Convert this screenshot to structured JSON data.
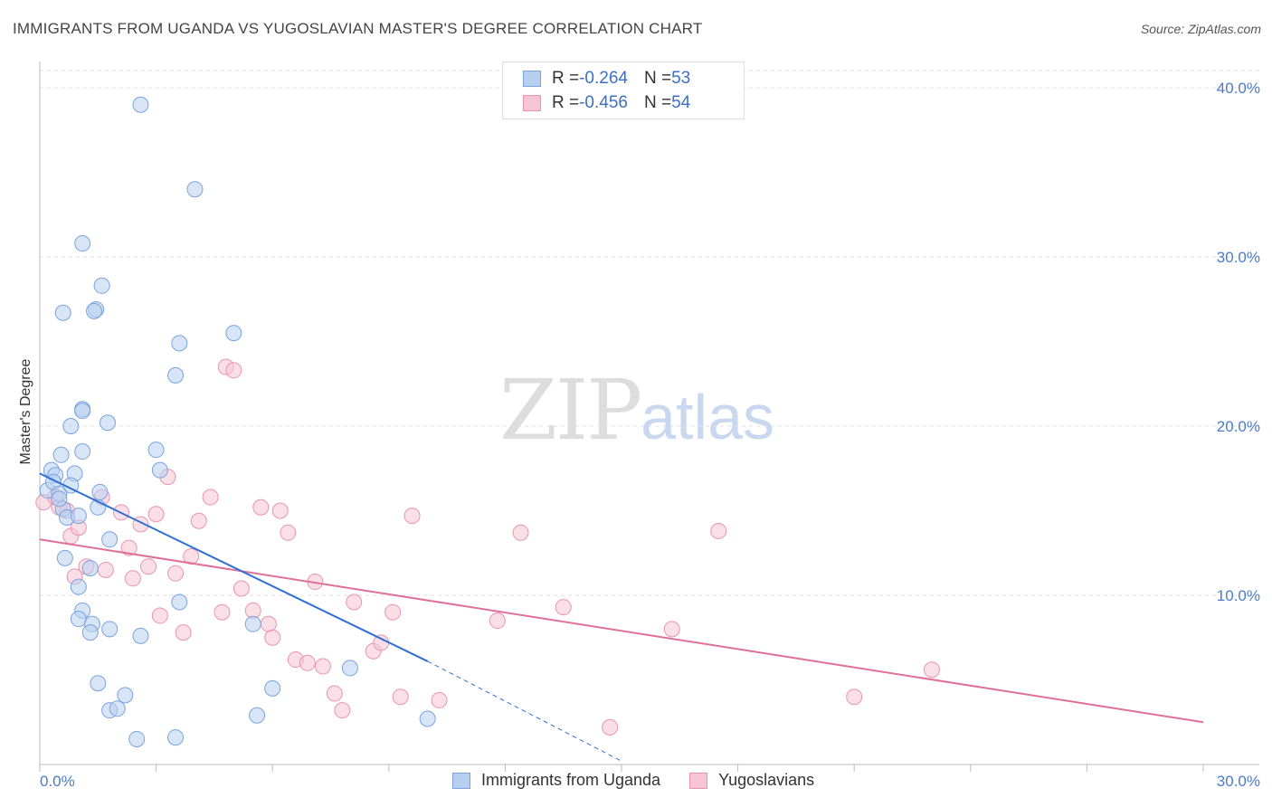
{
  "title": "IMMIGRANTS FROM UGANDA VS YUGOSLAVIAN MASTER'S DEGREE CORRELATION CHART",
  "source": "Source: ZipAtlas.com",
  "watermark": {
    "zip": "ZIP",
    "atlas": "atlas"
  },
  "legend": {
    "rows": [
      {
        "r_label": "R = ",
        "r_value": "-0.264",
        "n_label": "N = ",
        "n_value": "53"
      },
      {
        "r_label": "R = ",
        "r_value": "-0.456",
        "n_label": "N = ",
        "n_value": "54"
      }
    ]
  },
  "bottom_legend": {
    "series1": "Immigrants from Uganda",
    "series2": "Yugoslavians"
  },
  "colors": {
    "blue_fill": "#b8d0f0",
    "blue_stroke": "#7aa3dd",
    "blue_line": "#2f6fd6",
    "pink_fill": "#f7c4d4",
    "pink_stroke": "#e994b2",
    "pink_line": "#e0709a",
    "grid": "#e2e2e2",
    "tick_text": "#4a7cc9"
  },
  "chart_data": {
    "type": "scatter",
    "title": "IMMIGRANTS FROM UGANDA VS YUGOSLAVIAN MASTER'S DEGREE CORRELATION CHART",
    "xlabel": "",
    "ylabel": "Master's Degree",
    "xlim": [
      0,
      30
    ],
    "ylim": [
      0,
      40
    ],
    "x_tick_labels": [
      "0.0%",
      "30.0%"
    ],
    "y_ticks": [
      10,
      20,
      30,
      40
    ],
    "y_tick_labels": [
      "10.0%",
      "20.0%",
      "30.0%",
      "40.0%"
    ],
    "series": [
      {
        "name": "Immigrants from Uganda",
        "r": -0.264,
        "n": 53,
        "trend": {
          "x0": 0,
          "y0": 17.2,
          "x1": 10,
          "y1": 6.1,
          "dashed_to_x": 15,
          "dashed_to_y": 0.2
        },
        "points": [
          [
            0.2,
            16.2
          ],
          [
            0.3,
            17.4
          ],
          [
            0.4,
            17.1
          ],
          [
            0.35,
            16.7
          ],
          [
            0.5,
            16.0
          ],
          [
            0.6,
            15.1
          ],
          [
            0.7,
            14.6
          ],
          [
            0.55,
            18.3
          ],
          [
            0.9,
            17.2
          ],
          [
            0.8,
            16.5
          ],
          [
            0.8,
            20.0
          ],
          [
            1.0,
            14.7
          ],
          [
            1.1,
            18.5
          ],
          [
            1.0,
            10.5
          ],
          [
            1.1,
            9.1
          ],
          [
            1.0,
            8.6
          ],
          [
            1.35,
            8.3
          ],
          [
            1.3,
            7.8
          ],
          [
            1.3,
            11.6
          ],
          [
            1.5,
            15.2
          ],
          [
            1.55,
            16.1
          ],
          [
            1.8,
            13.3
          ],
          [
            1.8,
            8.0
          ],
          [
            1.5,
            4.8
          ],
          [
            1.8,
            3.2
          ],
          [
            2.0,
            3.3
          ],
          [
            2.2,
            4.1
          ],
          [
            2.5,
            1.5
          ],
          [
            2.6,
            7.6
          ],
          [
            3.1,
            17.4
          ],
          [
            3.0,
            18.6
          ],
          [
            3.5,
            1.6
          ],
          [
            3.6,
            9.6
          ],
          [
            3.6,
            24.9
          ],
          [
            4.0,
            34.0
          ],
          [
            2.6,
            39.0
          ],
          [
            1.6,
            28.3
          ],
          [
            1.45,
            26.9
          ],
          [
            1.4,
            26.8
          ],
          [
            0.6,
            26.7
          ],
          [
            1.1,
            21.0
          ],
          [
            1.1,
            20.9
          ],
          [
            1.75,
            20.2
          ],
          [
            3.5,
            23.0
          ],
          [
            5.0,
            25.5
          ],
          [
            5.5,
            8.3
          ],
          [
            6.0,
            4.5
          ],
          [
            5.6,
            2.9
          ],
          [
            8.0,
            5.7
          ],
          [
            10.0,
            2.7
          ],
          [
            1.1,
            30.8
          ],
          [
            0.65,
            12.2
          ],
          [
            0.5,
            15.7
          ]
        ]
      },
      {
        "name": "Yugoslavians",
        "r": -0.456,
        "n": 54,
        "trend": {
          "x0": 0,
          "y0": 13.3,
          "x1": 30,
          "y1": 2.5
        },
        "points": [
          [
            0.1,
            15.5
          ],
          [
            0.4,
            15.8
          ],
          [
            0.7,
            15.0
          ],
          [
            0.8,
            13.5
          ],
          [
            0.9,
            11.1
          ],
          [
            1.0,
            14.0
          ],
          [
            1.2,
            11.7
          ],
          [
            1.6,
            15.8
          ],
          [
            1.7,
            11.5
          ],
          [
            2.1,
            14.9
          ],
          [
            2.3,
            12.8
          ],
          [
            2.4,
            11.0
          ],
          [
            2.6,
            14.2
          ],
          [
            2.8,
            11.7
          ],
          [
            3.0,
            14.8
          ],
          [
            3.1,
            8.8
          ],
          [
            3.3,
            17.0
          ],
          [
            3.5,
            11.3
          ],
          [
            3.7,
            7.8
          ],
          [
            3.9,
            12.3
          ],
          [
            4.1,
            14.4
          ],
          [
            4.4,
            15.8
          ],
          [
            4.7,
            9.0
          ],
          [
            4.8,
            23.5
          ],
          [
            5.0,
            23.3
          ],
          [
            5.2,
            10.4
          ],
          [
            5.5,
            9.1
          ],
          [
            5.7,
            15.2
          ],
          [
            5.9,
            8.3
          ],
          [
            6.0,
            7.5
          ],
          [
            6.2,
            15.0
          ],
          [
            6.4,
            13.7
          ],
          [
            6.6,
            6.2
          ],
          [
            6.9,
            6.0
          ],
          [
            7.1,
            10.8
          ],
          [
            7.3,
            5.8
          ],
          [
            7.6,
            4.2
          ],
          [
            7.8,
            3.2
          ],
          [
            8.1,
            9.6
          ],
          [
            8.6,
            6.7
          ],
          [
            8.8,
            7.2
          ],
          [
            9.1,
            9.0
          ],
          [
            9.3,
            4.0
          ],
          [
            9.6,
            14.7
          ],
          [
            10.3,
            3.8
          ],
          [
            11.8,
            8.5
          ],
          [
            12.4,
            13.7
          ],
          [
            13.5,
            9.3
          ],
          [
            14.7,
            2.2
          ],
          [
            16.3,
            8.0
          ],
          [
            17.5,
            13.8
          ],
          [
            21.0,
            4.0
          ],
          [
            23.0,
            5.6
          ],
          [
            0.5,
            15.2
          ]
        ]
      }
    ]
  }
}
